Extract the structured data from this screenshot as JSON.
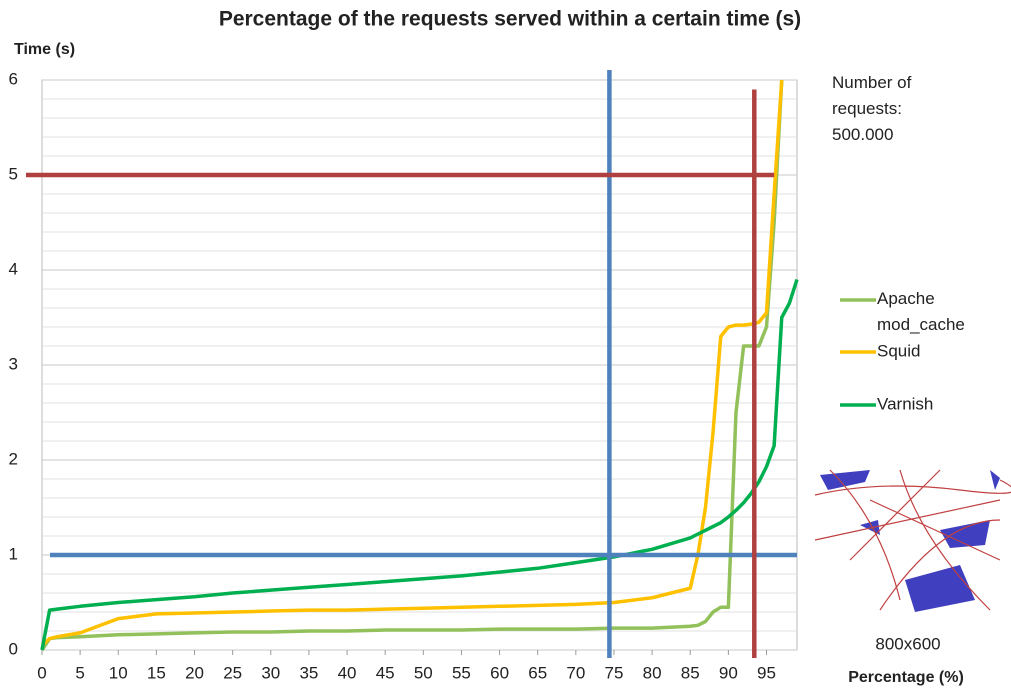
{
  "chart_data": {
    "type": "line",
    "title": "Percentage of the requests served within a certain time (s)",
    "y_label": "Time (s)",
    "x_label": "Percentage (%)",
    "annotation": "Number of requests: 500.000",
    "image_caption": "800x600",
    "x": [
      0,
      1,
      2,
      5,
      10,
      15,
      20,
      25,
      30,
      35,
      40,
      45,
      50,
      55,
      60,
      65,
      70,
      75,
      80,
      85,
      86,
      87,
      88,
      89,
      90,
      91,
      92,
      93,
      94,
      95,
      96,
      97,
      98,
      99
    ],
    "series": [
      {
        "name": "Apache mod_cache",
        "color": "#92c05a",
        "values": [
          0,
          0.12,
          0.13,
          0.14,
          0.16,
          0.17,
          0.18,
          0.19,
          0.19,
          0.2,
          0.2,
          0.21,
          0.21,
          0.21,
          0.22,
          0.22,
          0.22,
          0.23,
          0.23,
          0.25,
          0.26,
          0.3,
          0.4,
          0.45,
          0.45,
          2.5,
          3.2,
          3.2,
          3.2,
          3.4,
          4.5,
          6,
          null,
          null
        ]
      },
      {
        "name": "Squid",
        "color": "#ffc000",
        "values": [
          0.05,
          0.12,
          0.14,
          0.18,
          0.33,
          0.38,
          0.39,
          0.4,
          0.41,
          0.42,
          0.42,
          0.43,
          0.44,
          0.45,
          0.46,
          0.47,
          0.48,
          0.5,
          0.55,
          0.65,
          1.0,
          1.5,
          2.3,
          3.3,
          3.4,
          3.42,
          3.42,
          3.43,
          3.45,
          3.55,
          4.8,
          6,
          null,
          null
        ]
      },
      {
        "name": "Varnish",
        "color": "#00b050",
        "values": [
          0,
          0.42,
          0.43,
          0.46,
          0.5,
          0.53,
          0.56,
          0.6,
          0.63,
          0.66,
          0.69,
          0.72,
          0.75,
          0.78,
          0.82,
          0.86,
          0.92,
          0.98,
          1.06,
          1.18,
          1.22,
          1.26,
          1.3,
          1.34,
          1.4,
          1.47,
          1.55,
          1.65,
          1.77,
          1.93,
          2.15,
          3.5,
          3.65,
          3.9
        ]
      }
    ],
    "reference_lines": [
      {
        "axis": "x",
        "value": 74.4,
        "color": "#4f81bd"
      },
      {
        "axis": "y",
        "value": 1,
        "color": "#4f81bd"
      },
      {
        "axis": "y",
        "value": 5,
        "color": "#b04040"
      },
      {
        "axis": "x",
        "value": 93.4,
        "color": "#b04040"
      }
    ],
    "xlim": [
      0,
      99
    ],
    "ylim": [
      0,
      6
    ],
    "xticks": [
      0,
      5,
      10,
      15,
      20,
      25,
      30,
      35,
      40,
      45,
      50,
      55,
      60,
      65,
      70,
      75,
      80,
      85,
      90,
      95
    ],
    "yticks": [
      0,
      1,
      2,
      3,
      4,
      5,
      6
    ],
    "minor_yticks": [
      0.2,
      0.4,
      0.6,
      0.8,
      1.2,
      1.4,
      1.6,
      1.8,
      2.2,
      2.4,
      2.6,
      2.8,
      3.2,
      3.4,
      3.6,
      3.8,
      4.2,
      4.4,
      4.6,
      4.8,
      5.2,
      5.4,
      5.6,
      5.8
    ],
    "grid": true
  }
}
